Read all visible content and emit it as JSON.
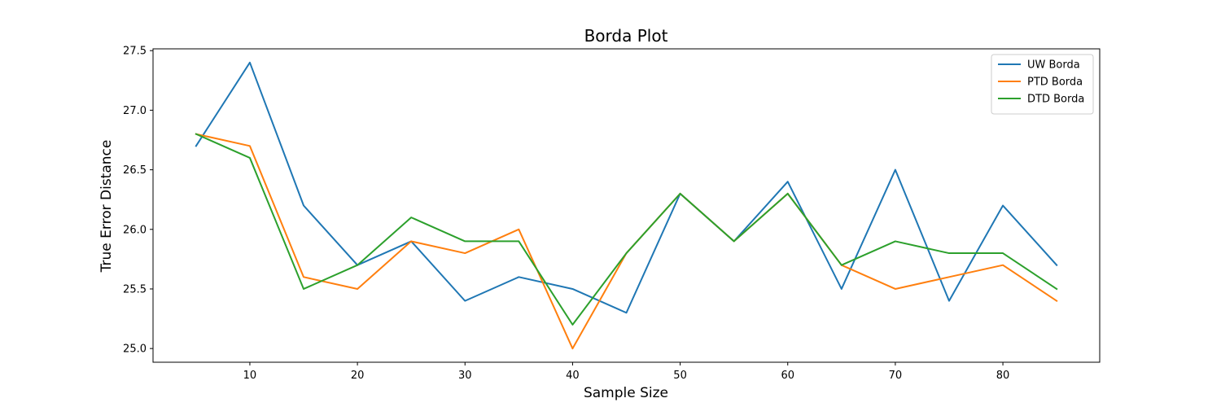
{
  "chart_data": {
    "type": "line",
    "title": "Borda Plot",
    "xlabel": "Sample Size",
    "ylabel": "True Error Distance",
    "x": [
      5,
      10,
      15,
      20,
      25,
      30,
      35,
      40,
      45,
      50,
      55,
      60,
      65,
      70,
      75,
      80,
      85
    ],
    "xlim": [
      1,
      89
    ],
    "ylim": [
      24.885,
      27.515
    ],
    "xticks": [
      10,
      20,
      30,
      40,
      50,
      60,
      70,
      80
    ],
    "yticks": [
      25.0,
      25.5,
      26.0,
      26.5,
      27.0,
      27.5
    ],
    "xtick_labels": [
      "10",
      "20",
      "30",
      "40",
      "50",
      "60",
      "70",
      "80"
    ],
    "ytick_labels": [
      "25.0",
      "25.5",
      "26.0",
      "26.5",
      "27.0",
      "27.5"
    ],
    "grid": false,
    "legend_position": "top-right",
    "series": [
      {
        "name": "UW Borda",
        "color": "#1f77b4",
        "values": [
          26.7,
          27.4,
          26.2,
          25.7,
          25.9,
          25.4,
          25.6,
          25.5,
          25.3,
          26.3,
          25.9,
          26.4,
          25.5,
          26.5,
          25.4,
          26.2,
          25.7
        ]
      },
      {
        "name": "PTD Borda",
        "color": "#ff7f0e",
        "values": [
          26.8,
          26.7,
          25.6,
          25.5,
          25.9,
          25.8,
          26.0,
          25.0,
          25.8,
          26.3,
          25.9,
          26.3,
          25.7,
          25.5,
          25.6,
          25.7,
          25.4
        ]
      },
      {
        "name": "DTD Borda",
        "color": "#2ca02c",
        "values": [
          26.8,
          26.6,
          25.5,
          25.7,
          26.1,
          25.9,
          25.9,
          25.2,
          25.8,
          26.3,
          25.9,
          26.3,
          25.7,
          25.9,
          25.8,
          25.8,
          25.5
        ]
      }
    ]
  }
}
